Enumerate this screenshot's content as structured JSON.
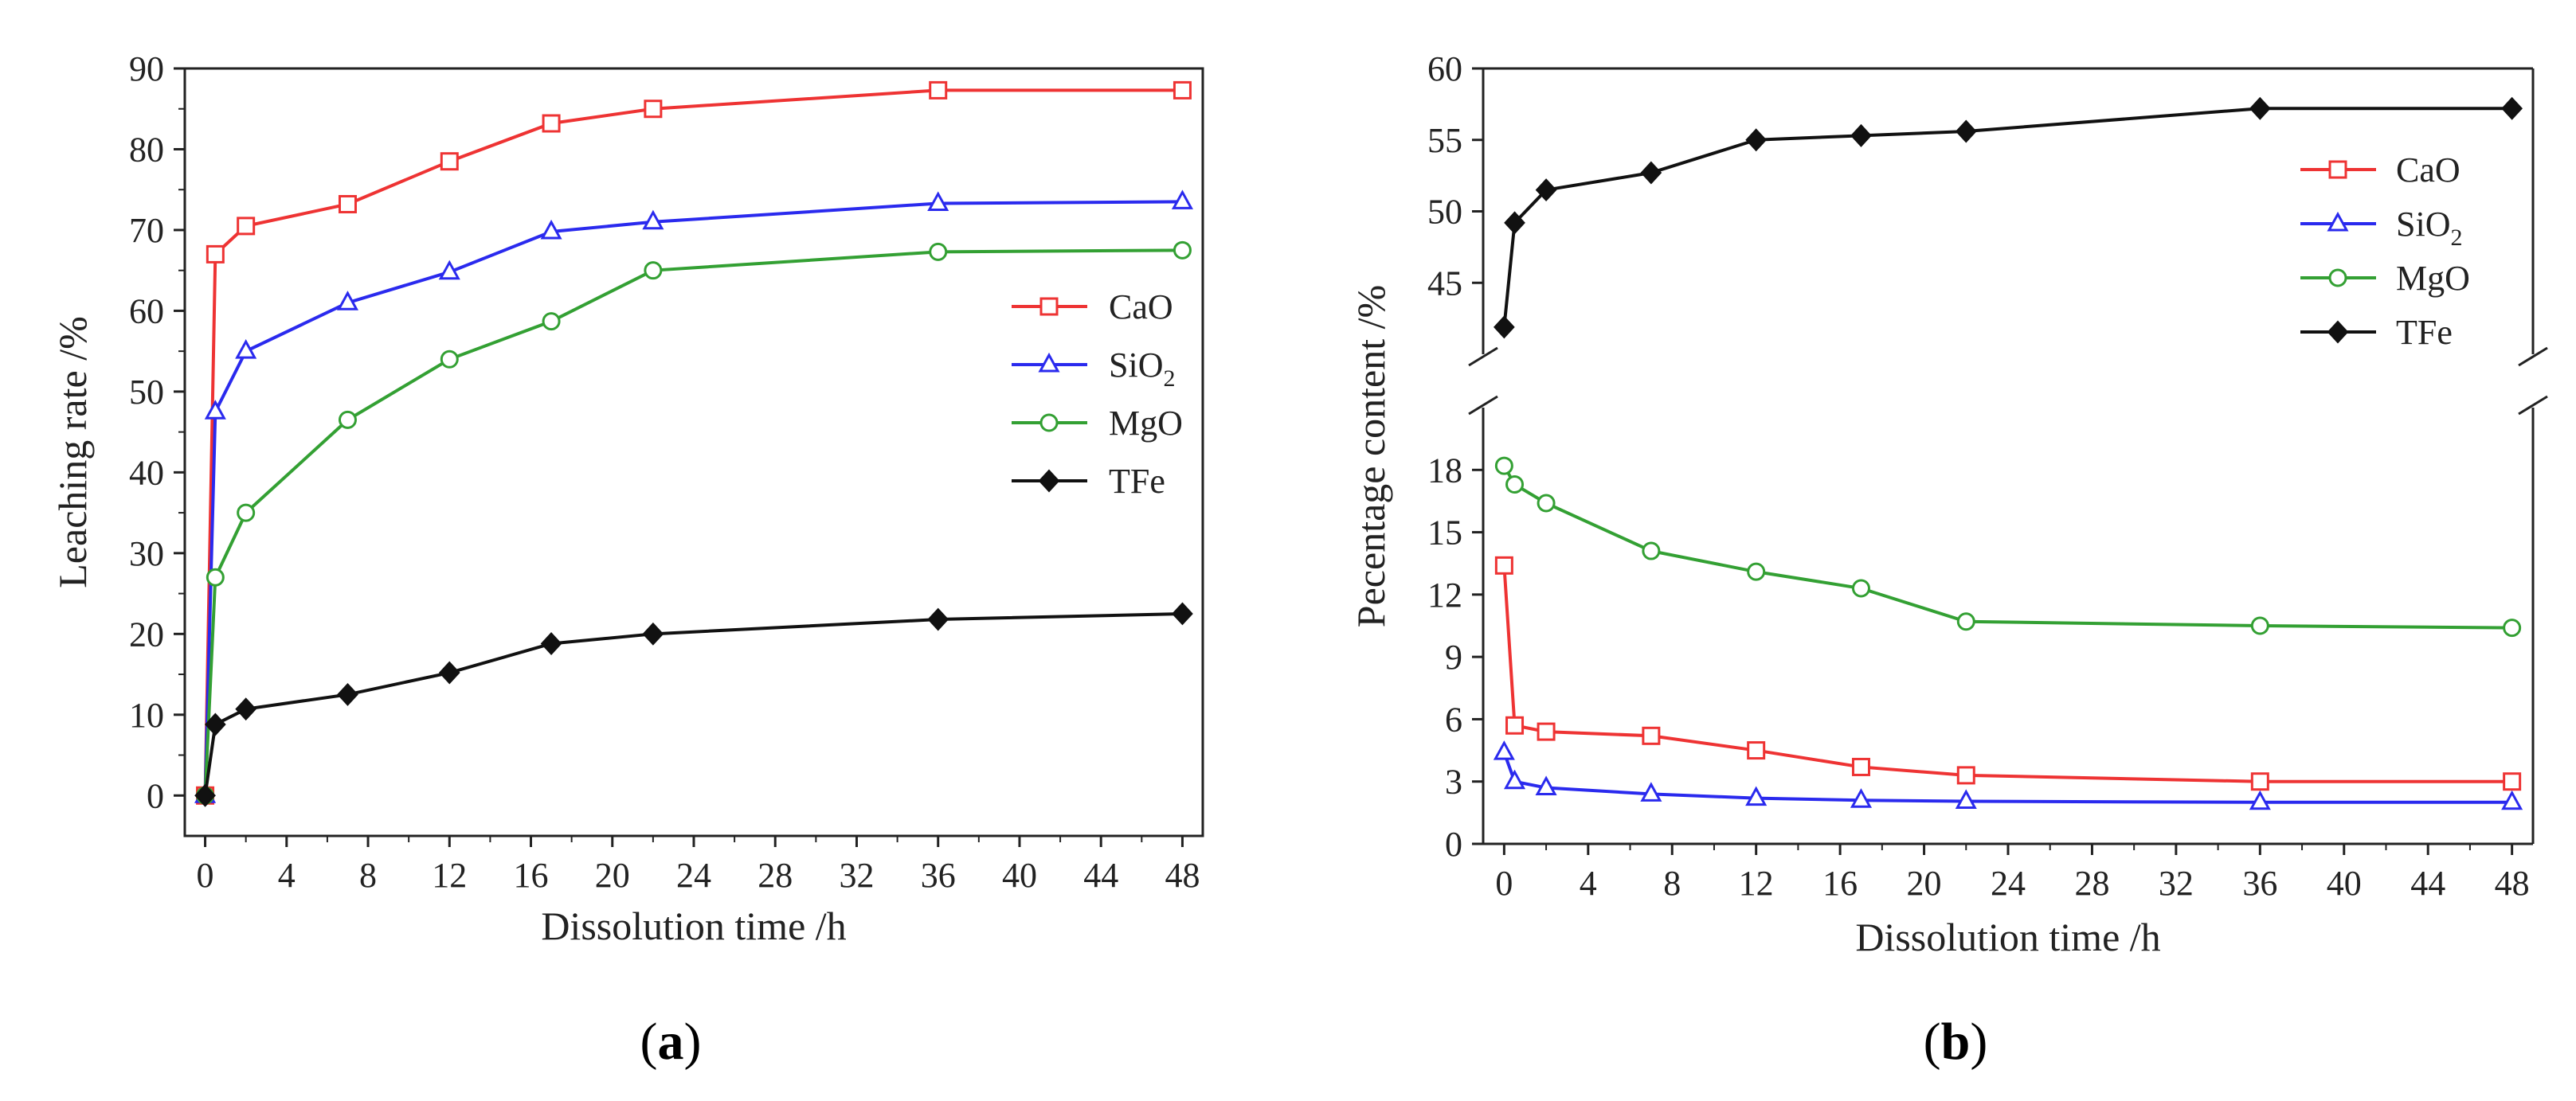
{
  "chart_data": [
    {
      "panel": "a",
      "type": "line",
      "caption_letter": "a",
      "xlabel": "Dissolution time /h",
      "ylabel": "Leaching rate /%",
      "xlim": [
        -1,
        49
      ],
      "ylim": [
        -5,
        90
      ],
      "xticks": [
        "0",
        "4",
        "8",
        "12",
        "16",
        "20",
        "24",
        "28",
        "32",
        "36",
        "40",
        "44",
        "48"
      ],
      "yticks": [
        "0",
        "10",
        "20",
        "30",
        "40",
        "50",
        "60",
        "70",
        "80",
        "90"
      ],
      "legend_position": "center-right",
      "series": [
        {
          "name": "CaO",
          "color": "#ee3333",
          "marker": "square",
          "x": [
            0,
            0.5,
            2,
            7,
            12,
            17,
            22,
            36,
            48
          ],
          "y": [
            0,
            67,
            70.5,
            73.2,
            78.5,
            83.2,
            85,
            87.3,
            87.3
          ]
        },
        {
          "name": "SiO",
          "sub": "2",
          "color": "#2a2aee",
          "marker": "triangle",
          "x": [
            0,
            0.5,
            2,
            7,
            12,
            17,
            22,
            36,
            48
          ],
          "y": [
            0,
            47.5,
            55,
            61,
            64.8,
            69.8,
            71,
            73.3,
            73.5
          ]
        },
        {
          "name": "MgO",
          "color": "#33a033",
          "marker": "circle",
          "x": [
            0,
            0.5,
            2,
            7,
            12,
            17,
            22,
            36,
            48
          ],
          "y": [
            0,
            27,
            35,
            46.5,
            54,
            58.7,
            65,
            67.3,
            67.5
          ]
        },
        {
          "name": "TFe",
          "color": "#111111",
          "marker": "diamond",
          "x": [
            0,
            0.5,
            2,
            7,
            12,
            17,
            22,
            36,
            48
          ],
          "y": [
            0,
            8.8,
            10.7,
            12.5,
            15.2,
            18.8,
            20,
            21.8,
            22.5
          ]
        }
      ]
    },
    {
      "panel": "b",
      "type": "line",
      "caption_letter": "b",
      "xlabel": "Dissolution time /h",
      "ylabel": "Pecentage content /%",
      "xlim": [
        -1,
        49
      ],
      "axis_break": true,
      "ylim_lower": [
        0,
        21
      ],
      "ylim_upper": [
        40,
        60
      ],
      "xticks": [
        "0",
        "4",
        "8",
        "12",
        "16",
        "20",
        "24",
        "28",
        "32",
        "36",
        "40",
        "44",
        "48"
      ],
      "yticks_lower": [
        "0",
        "3",
        "6",
        "9",
        "12",
        "15",
        "18"
      ],
      "yticks_upper": [
        "45",
        "50",
        "55",
        "60"
      ],
      "legend_position": "top-right",
      "series": [
        {
          "name": "CaO",
          "color": "#ee3333",
          "marker": "square",
          "x": [
            0,
            0.5,
            2,
            7,
            12,
            17,
            22,
            36,
            48
          ],
          "y": [
            13.4,
            5.7,
            5.4,
            5.2,
            4.5,
            3.7,
            3.3,
            3.0,
            3.0
          ]
        },
        {
          "name": "SiO",
          "sub": "2",
          "color": "#2a2aee",
          "marker": "triangle",
          "x": [
            0,
            0.5,
            2,
            7,
            12,
            17,
            22,
            36,
            48
          ],
          "y": [
            4.4,
            3.0,
            2.7,
            2.4,
            2.2,
            2.1,
            2.05,
            2.0,
            2.0
          ]
        },
        {
          "name": "MgO",
          "color": "#33a033",
          "marker": "circle",
          "x": [
            0,
            0.5,
            2,
            7,
            12,
            17,
            22,
            36,
            48
          ],
          "y": [
            18.2,
            17.3,
            16.4,
            14.1,
            13.1,
            12.3,
            10.7,
            10.5,
            10.4
          ]
        },
        {
          "name": "TFe",
          "color": "#111111",
          "marker": "diamond",
          "x": [
            0,
            0.5,
            2,
            7,
            12,
            17,
            22,
            36,
            48
          ],
          "y": [
            41.9,
            49.2,
            51.5,
            52.7,
            55,
            55.3,
            55.6,
            57.2,
            57.2
          ]
        }
      ]
    }
  ]
}
